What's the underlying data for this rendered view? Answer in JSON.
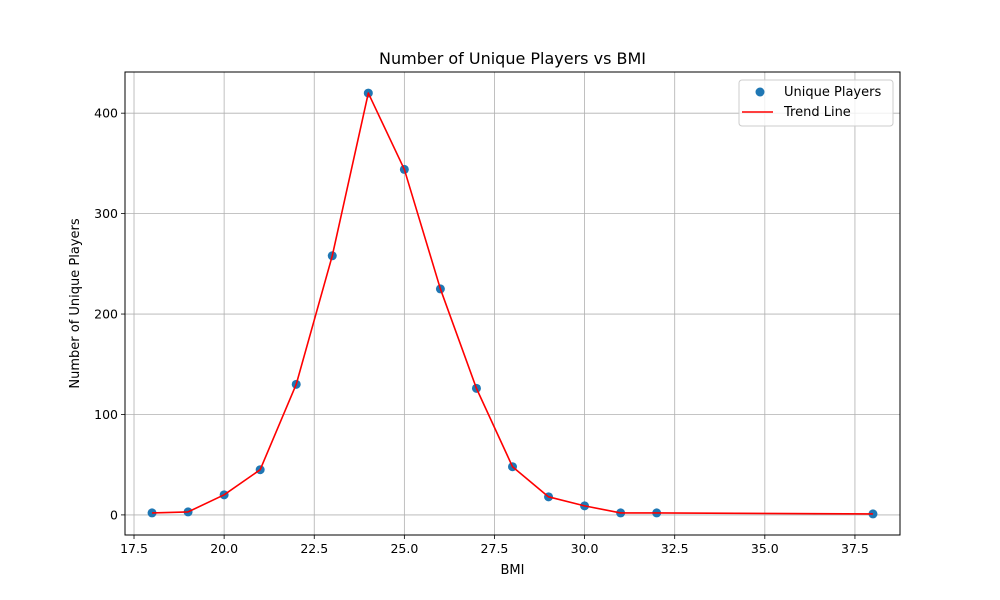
{
  "chart_data": {
    "type": "scatter",
    "title": "Number of Unique Players vs BMI",
    "xlabel": "BMI",
    "ylabel": "Number of Unique Players",
    "xlim": [
      17.25,
      38.75
    ],
    "ylim": [
      -20,
      441
    ],
    "xticks": [
      17.5,
      20.0,
      22.5,
      25.0,
      27.5,
      30.0,
      32.5,
      35.0,
      37.5
    ],
    "xtick_labels": [
      "17.5",
      "20.0",
      "22.5",
      "25.0",
      "27.5",
      "30.0",
      "32.5",
      "35.0",
      "37.5"
    ],
    "yticks": [
      0,
      100,
      200,
      300,
      400
    ],
    "ytick_labels": [
      "0",
      "100",
      "200",
      "300",
      "400"
    ],
    "grid": true,
    "legend_position": "top-right",
    "series": [
      {
        "name": "Unique Players",
        "kind": "scatter",
        "color": "#1f77b4",
        "x": [
          18,
          19,
          20,
          21,
          22,
          23,
          24,
          25,
          26,
          27,
          28,
          29,
          30,
          31,
          32,
          38
        ],
        "y": [
          2,
          3,
          20,
          45,
          130,
          258,
          420,
          344,
          225,
          126,
          48,
          18,
          9,
          2,
          2,
          1
        ]
      },
      {
        "name": "Trend Line",
        "kind": "line",
        "color": "#ff0000",
        "x": [
          18,
          19,
          20,
          21,
          22,
          23,
          24,
          25,
          26,
          27,
          28,
          29,
          30,
          31,
          32,
          38
        ],
        "y": [
          2,
          3,
          20,
          45,
          130,
          258,
          420,
          344,
          225,
          126,
          48,
          18,
          9,
          2,
          2,
          1
        ]
      }
    ]
  }
}
